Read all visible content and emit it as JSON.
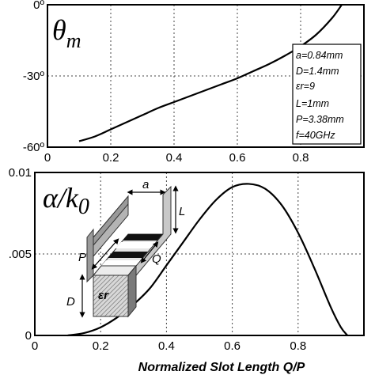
{
  "chart_data": [
    {
      "type": "line",
      "ylabel_symbol": "θ",
      "ylabel_sub": "m",
      "xlim": [
        0,
        1
      ],
      "ylim": [
        -60,
        0
      ],
      "x_ticks": [
        "0",
        "0.2",
        "0.4",
        "0.6",
        "0.8"
      ],
      "y_ticks": [
        "0º",
        "-30º",
        "-60º"
      ],
      "y_tick_values": [
        0,
        -30,
        -60
      ],
      "grid": true,
      "series": [
        {
          "x": [
            0.1,
            0.15,
            0.2,
            0.25,
            0.3,
            0.35,
            0.4,
            0.45,
            0.5,
            0.55,
            0.6,
            0.65,
            0.7,
            0.75,
            0.8,
            0.85,
            0.9,
            0.93
          ],
          "y": [
            -57.5,
            -55.5,
            -52.5,
            -49.5,
            -46.5,
            -43.5,
            -41,
            -38.5,
            -36,
            -33.5,
            -31,
            -28,
            -25,
            -21.5,
            -17.5,
            -12.5,
            -5.5,
            0
          ]
        }
      ],
      "params": [
        "a=0.84mm",
        "D=1.4mm",
        "εr=9",
        "L=1mm",
        "P=3.38mm",
        "f=40GHz"
      ]
    },
    {
      "type": "line",
      "ylabel_symbol": "α/k",
      "ylabel_sub": "0",
      "xlabel": "Normalized Slot Length Q/P",
      "xlim": [
        0,
        1
      ],
      "ylim": [
        0,
        0.01
      ],
      "x_ticks": [
        "0",
        "0.2",
        "0.4",
        "0.6",
        "0.8"
      ],
      "y_ticks": [
        "0.01",
        ".005",
        "0"
      ],
      "y_tick_values": [
        0.01,
        0.005,
        0
      ],
      "grid": true,
      "series": [
        {
          "x": [
            0.1,
            0.15,
            0.2,
            0.25,
            0.3,
            0.35,
            0.4,
            0.45,
            0.5,
            0.55,
            0.6,
            0.65,
            0.7,
            0.75,
            0.8,
            0.85,
            0.9,
            0.93,
            0.95
          ],
          "y": [
            0,
            0.00015,
            0.0005,
            0.0011,
            0.0019,
            0.0029,
            0.0043,
            0.0057,
            0.0071,
            0.0083,
            0.0091,
            0.0093,
            0.009,
            0.008,
            0.0063,
            0.0041,
            0.0017,
            0.0005,
            0
          ]
        }
      ],
      "inset": {
        "labels": [
          "a",
          "L",
          "P",
          "Q",
          "D",
          "εr"
        ]
      }
    }
  ]
}
